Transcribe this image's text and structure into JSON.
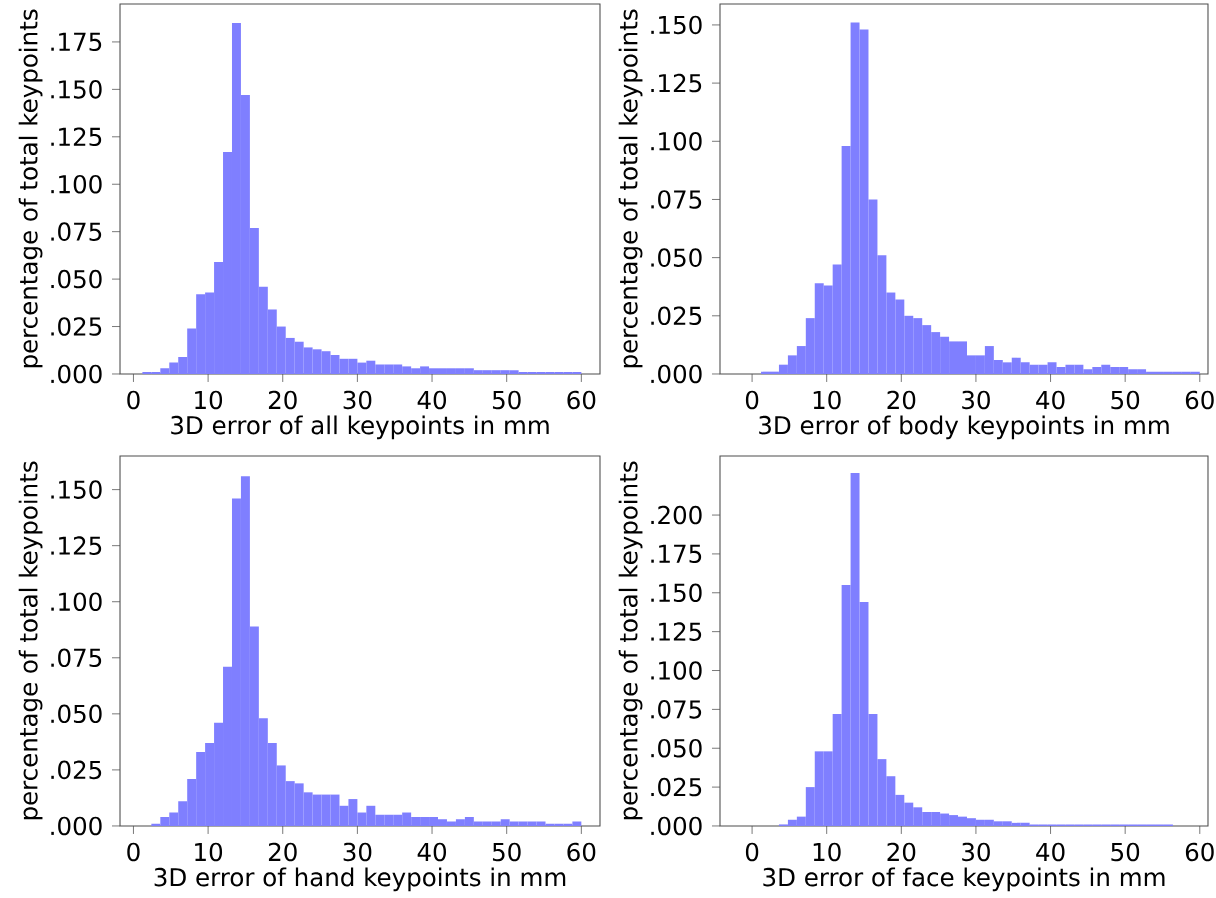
{
  "chart_data": [
    {
      "type": "histogram",
      "xlabel": "3D error of all keypoints in mm",
      "ylabel": "percentage of total keypoints",
      "color": "#7f7fff",
      "bins": [
        0,
        1.2,
        2.4,
        3.6,
        4.8,
        6,
        7.2,
        8.4,
        9.6,
        10.8,
        12,
        13.2,
        14.4,
        15.6,
        16.8,
        18,
        19.2,
        20.4,
        21.6,
        22.8,
        24,
        25.2,
        26.4,
        27.6,
        28.8,
        30,
        31.2,
        32.4,
        33.6,
        34.8,
        36,
        37.2,
        38.4,
        39.6,
        40.8,
        42,
        43.2,
        44.4,
        45.6,
        46.8,
        48,
        49.2,
        50.4,
        51.6,
        52.8,
        54,
        55.2,
        56.4,
        57.6,
        58.8,
        60
      ],
      "values": [
        0,
        0.001,
        0.001,
        0.003,
        0.006,
        0.009,
        0.024,
        0.042,
        0.043,
        0.059,
        0.117,
        0.185,
        0.147,
        0.077,
        0.046,
        0.034,
        0.025,
        0.019,
        0.017,
        0.014,
        0.013,
        0.012,
        0.01,
        0.008,
        0.008,
        0.006,
        0.007,
        0.005,
        0.005,
        0.005,
        0.004,
        0.003,
        0.004,
        0.003,
        0.003,
        0.003,
        0.003,
        0.003,
        0.002,
        0.002,
        0.002,
        0.002,
        0.002,
        0.001,
        0.001,
        0.001,
        0.001,
        0.001,
        0.001,
        0.001
      ],
      "xlim": [
        -1.8,
        62.5
      ],
      "ylim": [
        0,
        0.195
      ],
      "xticks": [
        0,
        10,
        20,
        30,
        40,
        50,
        60
      ],
      "yticks": [
        {
          "value": 0,
          "label": ".000"
        },
        {
          "value": 0.025,
          "label": ".025"
        },
        {
          "value": 0.05,
          "label": ".050"
        },
        {
          "value": 0.075,
          "label": ".075"
        },
        {
          "value": 0.1,
          "label": ".100"
        },
        {
          "value": 0.125,
          "label": ".125"
        },
        {
          "value": 0.15,
          "label": ".150"
        },
        {
          "value": 0.175,
          "label": ".175"
        }
      ]
    },
    {
      "type": "histogram",
      "xlabel": "3D error of body keypoints in mm",
      "ylabel": "percentage of total keypoints",
      "color": "#7f7fff",
      "bins": [
        0,
        1.2,
        2.4,
        3.6,
        4.8,
        6,
        7.2,
        8.4,
        9.6,
        10.8,
        12,
        13.2,
        14.4,
        15.6,
        16.8,
        18,
        19.2,
        20.4,
        21.6,
        22.8,
        24,
        25.2,
        26.4,
        27.6,
        28.8,
        30,
        31.2,
        32.4,
        33.6,
        34.8,
        36,
        37.2,
        38.4,
        39.6,
        40.8,
        42,
        43.2,
        44.4,
        45.6,
        46.8,
        48,
        49.2,
        50.4,
        51.6,
        52.8,
        54,
        55.2,
        56.4,
        57.6,
        58.8,
        60
      ],
      "values": [
        0,
        0.001,
        0.001,
        0.004,
        0.008,
        0.012,
        0.024,
        0.039,
        0.038,
        0.047,
        0.098,
        0.151,
        0.148,
        0.075,
        0.051,
        0.035,
        0.032,
        0.025,
        0.024,
        0.021,
        0.018,
        0.016,
        0.014,
        0.014,
        0.008,
        0.008,
        0.012,
        0.006,
        0.005,
        0.007,
        0.005,
        0.004,
        0.004,
        0.005,
        0.003,
        0.004,
        0.004,
        0.002,
        0.003,
        0.004,
        0.003,
        0.003,
        0.002,
        0.002,
        0.001,
        0.001,
        0.001,
        0.001,
        0.001,
        0.001
      ],
      "xlim": [
        -4.3,
        61.1
      ],
      "ylim": [
        0,
        0.159
      ],
      "xticks": [
        0,
        10,
        20,
        30,
        40,
        50,
        60
      ],
      "yticks": [
        {
          "value": 0,
          "label": ".000"
        },
        {
          "value": 0.025,
          "label": ".025"
        },
        {
          "value": 0.05,
          "label": ".050"
        },
        {
          "value": 0.075,
          "label": ".075"
        },
        {
          "value": 0.1,
          "label": ".100"
        },
        {
          "value": 0.125,
          "label": ".125"
        },
        {
          "value": 0.15,
          "label": ".150"
        }
      ]
    },
    {
      "type": "histogram",
      "xlabel": "3D error of hand keypoints in mm",
      "ylabel": "percentage of total keypoints",
      "color": "#7f7fff",
      "bins": [
        0,
        1.2,
        2.4,
        3.6,
        4.8,
        6,
        7.2,
        8.4,
        9.6,
        10.8,
        12,
        13.2,
        14.4,
        15.6,
        16.8,
        18,
        19.2,
        20.4,
        21.6,
        22.8,
        24,
        25.2,
        26.4,
        27.6,
        28.8,
        30,
        31.2,
        32.4,
        33.6,
        34.8,
        36,
        37.2,
        38.4,
        39.6,
        40.8,
        42,
        43.2,
        44.4,
        45.6,
        46.8,
        48,
        49.2,
        50.4,
        51.6,
        52.8,
        54,
        55.2,
        56.4,
        57.6,
        58.8,
        60
      ],
      "values": [
        0,
        0,
        0.001,
        0.004,
        0.006,
        0.011,
        0.021,
        0.033,
        0.037,
        0.046,
        0.071,
        0.146,
        0.156,
        0.089,
        0.048,
        0.037,
        0.027,
        0.02,
        0.019,
        0.015,
        0.014,
        0.014,
        0.014,
        0.009,
        0.012,
        0.006,
        0.009,
        0.005,
        0.005,
        0.005,
        0.006,
        0.004,
        0.004,
        0.004,
        0.003,
        0.002,
        0.003,
        0.004,
        0.002,
        0.002,
        0.002,
        0.003,
        0.002,
        0.002,
        0.002,
        0.002,
        0.001,
        0.001,
        0.001,
        0.002
      ],
      "xlim": [
        -1.8,
        62.5
      ],
      "ylim": [
        0,
        0.165
      ],
      "xticks": [
        0,
        10,
        20,
        30,
        40,
        50,
        60
      ],
      "yticks": [
        {
          "value": 0,
          "label": ".000"
        },
        {
          "value": 0.025,
          "label": ".025"
        },
        {
          "value": 0.05,
          "label": ".050"
        },
        {
          "value": 0.075,
          "label": ".075"
        },
        {
          "value": 0.1,
          "label": ".100"
        },
        {
          "value": 0.125,
          "label": ".125"
        },
        {
          "value": 0.15,
          "label": ".150"
        }
      ]
    },
    {
      "type": "histogram",
      "xlabel": "3D error of face keypoints in mm",
      "ylabel": "percentage of total keypoints",
      "color": "#7f7fff",
      "bins": [
        0,
        1.2,
        2.4,
        3.6,
        4.8,
        6,
        7.2,
        8.4,
        9.6,
        10.8,
        12,
        13.2,
        14.4,
        15.6,
        16.8,
        18,
        19.2,
        20.4,
        21.6,
        22.8,
        24,
        25.2,
        26.4,
        27.6,
        28.8,
        30,
        31.2,
        32.4,
        33.6,
        34.8,
        36,
        37.2,
        38.4,
        39.6,
        40.8,
        42,
        43.2,
        44.4,
        45.6,
        46.8,
        48,
        49.2,
        50.4,
        51.6,
        52.8,
        54,
        55.2,
        56.4,
        57.6,
        58.8,
        60
      ],
      "values": [
        0,
        0,
        0,
        0.001,
        0.004,
        0.006,
        0.025,
        0.048,
        0.048,
        0.072,
        0.155,
        0.227,
        0.144,
        0.072,
        0.043,
        0.032,
        0.02,
        0.015,
        0.012,
        0.009,
        0.009,
        0.008,
        0.007,
        0.006,
        0.005,
        0.004,
        0.004,
        0.003,
        0.003,
        0.002,
        0.002,
        0.001,
        0.001,
        0.001,
        0.001,
        0.001,
        0.001,
        0.001,
        0.001,
        0.001,
        0.001,
        0.001,
        0.001,
        0.001,
        0.001,
        0.001,
        0.001,
        0,
        0,
        0
      ],
      "xlim": [
        -4.3,
        61.1
      ],
      "ylim": [
        0,
        0.238
      ],
      "xticks": [
        0,
        10,
        20,
        30,
        40,
        50,
        60
      ],
      "yticks": [
        {
          "value": 0,
          "label": ".000"
        },
        {
          "value": 0.025,
          "label": ".025"
        },
        {
          "value": 0.05,
          "label": ".050"
        },
        {
          "value": 0.075,
          "label": ".075"
        },
        {
          "value": 0.1,
          "label": ".100"
        },
        {
          "value": 0.125,
          "label": ".125"
        },
        {
          "value": 0.15,
          "label": ".150"
        },
        {
          "value": 0.175,
          "label": ".175"
        },
        {
          "value": 0.2,
          "label": ".200"
        }
      ]
    }
  ]
}
